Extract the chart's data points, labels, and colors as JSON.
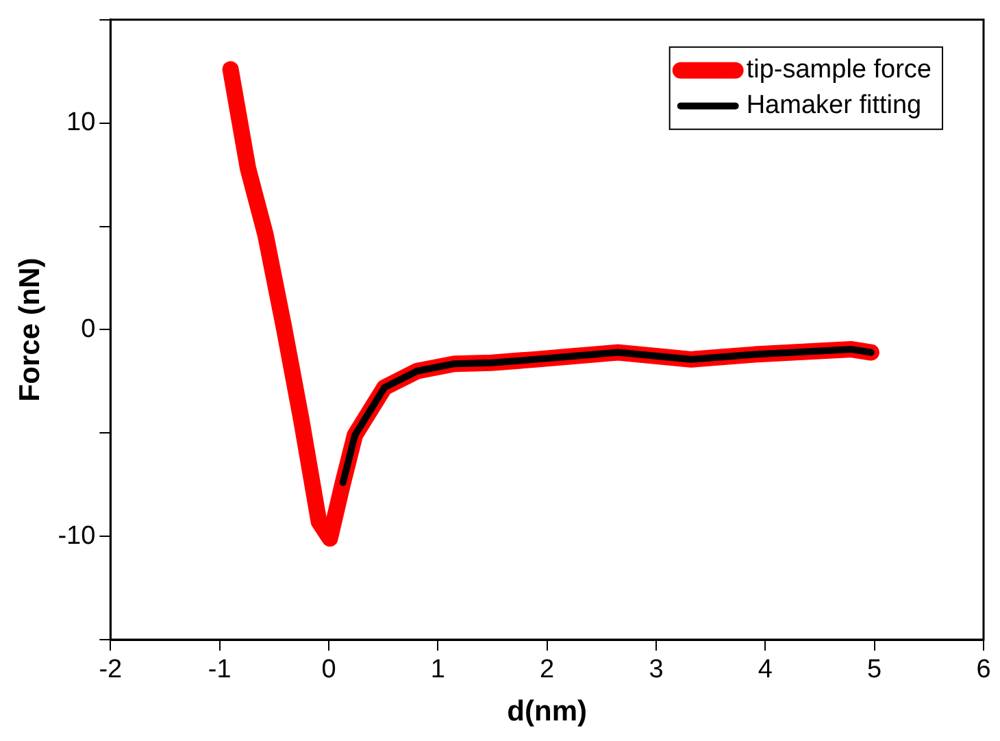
{
  "chart_data": {
    "type": "line",
    "xlabel": "d(nm)",
    "ylabel": "Force (nN)",
    "xlim": [
      -2,
      6
    ],
    "xticks": [
      -2,
      -1,
      0,
      1,
      2,
      3,
      4,
      5,
      6
    ],
    "ylim": [
      -15,
      15
    ],
    "yticks": [
      {
        "value": -15,
        "label": null
      },
      -10,
      {
        "value": -5,
        "label": null
      },
      0,
      {
        "value": 5,
        "label": null
      },
      10,
      {
        "value": 15,
        "label": null
      }
    ],
    "grid": false,
    "legend": "top right",
    "marker": "none",
    "line_style": "solid",
    "series": [
      {
        "name": "tip-sample force",
        "color": "#ff0000",
        "x": [
          -0.9,
          -0.74,
          -0.58,
          -0.41,
          -0.25,
          -0.09,
          0.01,
          0.13,
          0.24,
          0.51,
          0.81,
          1.15,
          1.49,
          1.89,
          2.65,
          3.32,
          3.9,
          4.79,
          4.97
        ],
        "values": [
          12.6,
          7.8,
          4.6,
          0.1,
          -4.4,
          -9.3,
          -10.1,
          -7.4,
          -5.1,
          -2.8,
          -2.0,
          -1.65,
          -1.6,
          -1.44,
          -1.1,
          -1.44,
          -1.2,
          -0.95,
          -1.1
        ]
      },
      {
        "name": "Hamaker fitting",
        "color": "#000000",
        "x": [
          0.13,
          0.24,
          0.51,
          0.81,
          1.15,
          1.49,
          1.89,
          2.65,
          3.32,
          3.9,
          4.79,
          4.97
        ],
        "values": [
          -7.4,
          -5.1,
          -2.8,
          -2.0,
          -1.65,
          -1.6,
          -1.44,
          -1.1,
          -1.44,
          -1.2,
          -0.95,
          -1.1
        ]
      }
    ]
  }
}
